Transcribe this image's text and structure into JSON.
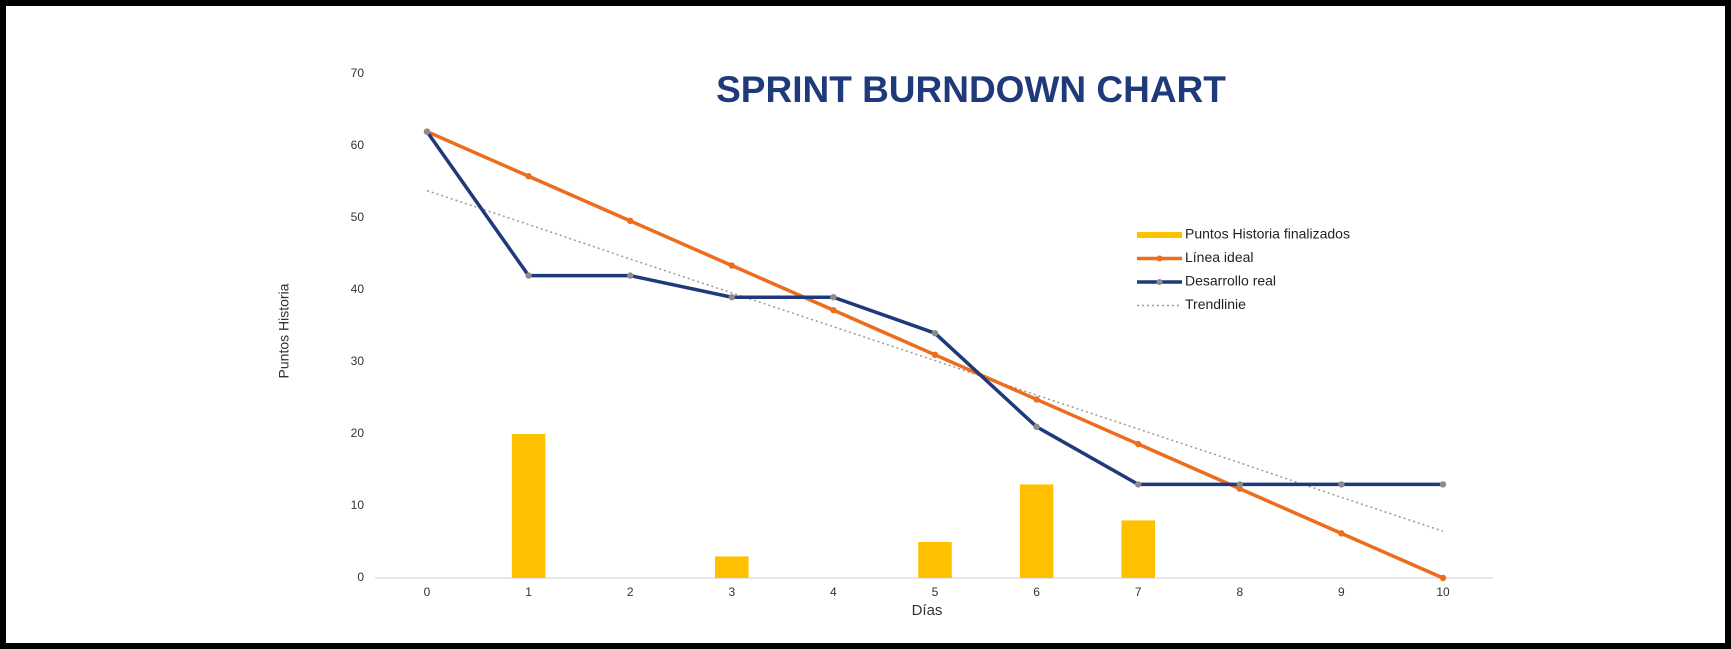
{
  "chart_data": {
    "type": "combo",
    "title": "SPRINT BURNDOWN CHART",
    "x_label": "Días",
    "y_label": "Puntos Historia",
    "x": [
      0,
      1,
      2,
      3,
      4,
      5,
      6,
      7,
      8,
      9,
      10
    ],
    "xlim": [
      0,
      10
    ],
    "xticks": [
      0,
      1,
      2,
      3,
      4,
      5,
      6,
      7,
      8,
      9,
      10
    ],
    "ylim": [
      0,
      70
    ],
    "yticks": [
      0,
      10,
      20,
      30,
      40,
      50,
      60,
      70
    ],
    "legend": "right",
    "series": [
      {
        "name": "Puntos Historia finalizados",
        "type": "bar",
        "color": "#ffc000",
        "values": [
          0,
          20,
          0,
          3,
          0,
          5,
          13,
          8,
          0,
          0,
          0
        ]
      },
      {
        "name": "Línea ideal",
        "type": "line",
        "color": "#ed6d1f",
        "marker": "#ed6d1f",
        "values": [
          62,
          55.8,
          49.6,
          43.4,
          37.2,
          31,
          24.8,
          18.6,
          12.4,
          6.2,
          0
        ]
      },
      {
        "name": "Desarrollo real",
        "type": "line",
        "color": "#1f3a7a",
        "marker": "#8c8c8c",
        "values": [
          62,
          42,
          42,
          39,
          39,
          34,
          21,
          13,
          13,
          13,
          13
        ]
      },
      {
        "name": "Trendlinie",
        "type": "trend",
        "color": "#9a9a9a",
        "values": [
          53.8,
          49.1,
          44.3,
          39.6,
          34.9,
          30.2,
          25.4,
          20.7,
          16.0,
          11.2,
          6.5
        ]
      }
    ]
  }
}
